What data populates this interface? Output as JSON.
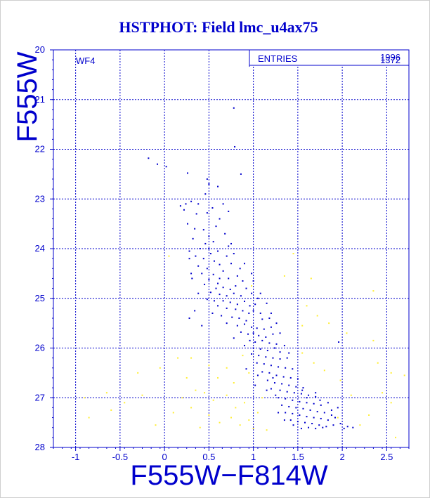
{
  "chart_data": {
    "type": "scatter",
    "title": "HSTPHOT: Field lmc_u4ax75",
    "xlabel": "F555W−F814W",
    "ylabel": "F555W",
    "xlim": [
      -1.25,
      2.75
    ],
    "ylim": [
      20,
      28
    ],
    "y_inverted": true,
    "xticks": [
      -1,
      -0.5,
      0,
      0.5,
      1,
      1.5,
      2,
      2.5
    ],
    "yticks": [
      20,
      21,
      22,
      23,
      24,
      25,
      26,
      27,
      28
    ],
    "grid": true,
    "panel_label": "WF4",
    "stats_box": {
      "label": "ENTRIES",
      "values": [
        "1996",
        "1372"
      ]
    },
    "colors": {
      "axis": "#0000cc",
      "primary_points": "#0000cc",
      "secondary_points": "#ffee33"
    },
    "series": [
      {
        "color": "#0000cc",
        "points": [
          [
            0.78,
            21.17
          ],
          [
            0.79,
            21.95
          ],
          [
            -0.18,
            22.18
          ],
          [
            -0.08,
            22.3
          ],
          [
            0.02,
            22.35
          ],
          [
            0.26,
            22.48
          ],
          [
            0.48,
            22.6
          ],
          [
            0.5,
            22.7
          ],
          [
            0.46,
            22.9
          ],
          [
            0.3,
            23.05
          ],
          [
            0.24,
            23.1
          ],
          [
            0.38,
            23.1
          ],
          [
            0.18,
            23.14
          ],
          [
            0.54,
            23.18
          ],
          [
            0.22,
            23.22
          ],
          [
            0.48,
            23.28
          ],
          [
            0.36,
            23.3
          ],
          [
            0.66,
            23.1
          ],
          [
            0.72,
            23.25
          ],
          [
            0.62,
            23.4
          ],
          [
            0.58,
            23.55
          ],
          [
            0.44,
            23.62
          ],
          [
            0.5,
            23.75
          ],
          [
            0.32,
            23.8
          ],
          [
            0.55,
            23.86
          ],
          [
            0.46,
            23.9
          ],
          [
            0.68,
            23.7
          ],
          [
            0.75,
            23.9
          ],
          [
            0.4,
            24.0
          ],
          [
            0.28,
            24.05
          ],
          [
            0.52,
            24.1
          ],
          [
            0.6,
            24.05
          ],
          [
            0.35,
            24.15
          ],
          [
            0.44,
            24.2
          ],
          [
            0.7,
            24.15
          ],
          [
            0.56,
            24.25
          ],
          [
            0.62,
            24.32
          ],
          [
            0.38,
            24.35
          ],
          [
            0.48,
            24.4
          ],
          [
            0.66,
            24.45
          ],
          [
            0.75,
            24.3
          ],
          [
            0.85,
            24.4
          ],
          [
            0.42,
            24.5
          ],
          [
            0.55,
            24.52
          ],
          [
            0.31,
            24.6
          ],
          [
            0.5,
            24.62
          ],
          [
            0.62,
            24.6
          ],
          [
            0.72,
            24.6
          ],
          [
            0.82,
            24.55
          ],
          [
            0.88,
            24.65
          ],
          [
            0.6,
            24.7
          ],
          [
            0.45,
            24.72
          ],
          [
            0.58,
            24.8
          ],
          [
            0.66,
            24.78
          ],
          [
            0.74,
            24.82
          ],
          [
            0.8,
            24.75
          ],
          [
            0.92,
            24.8
          ],
          [
            0.52,
            24.88
          ],
          [
            0.38,
            24.9
          ],
          [
            0.62,
            24.92
          ],
          [
            0.7,
            24.95
          ],
          [
            0.78,
            24.9
          ],
          [
            0.86,
            24.95
          ],
          [
            0.98,
            24.9
          ],
          [
            1.05,
            25.0
          ],
          [
            0.48,
            25.02
          ],
          [
            0.56,
            25.05
          ],
          [
            0.66,
            25.05
          ],
          [
            0.74,
            25.08
          ],
          [
            0.82,
            25.12
          ],
          [
            0.9,
            25.06
          ],
          [
            0.96,
            25.15
          ],
          [
            1.02,
            25.12
          ],
          [
            0.6,
            25.15
          ],
          [
            0.7,
            25.2
          ],
          [
            0.8,
            25.22
          ],
          [
            0.88,
            25.25
          ],
          [
            0.95,
            25.3
          ],
          [
            1.0,
            25.25
          ],
          [
            1.08,
            25.3
          ],
          [
            0.54,
            25.3
          ],
          [
            0.64,
            25.35
          ],
          [
            0.76,
            25.38
          ],
          [
            0.84,
            25.4
          ],
          [
            0.92,
            25.45
          ],
          [
            1.1,
            25.42
          ],
          [
            1.18,
            25.4
          ],
          [
            0.7,
            25.5
          ],
          [
            0.82,
            25.55
          ],
          [
            0.9,
            25.52
          ],
          [
            0.98,
            25.58
          ],
          [
            1.04,
            25.6
          ],
          [
            1.12,
            25.62
          ],
          [
            1.2,
            25.58
          ],
          [
            0.86,
            25.68
          ],
          [
            0.94,
            25.72
          ],
          [
            1.0,
            25.7
          ],
          [
            1.06,
            25.75
          ],
          [
            1.14,
            25.78
          ],
          [
            1.22,
            25.72
          ],
          [
            0.78,
            25.8
          ],
          [
            0.96,
            25.85
          ],
          [
            1.02,
            25.88
          ],
          [
            1.1,
            25.85
          ],
          [
            1.18,
            25.9
          ],
          [
            1.26,
            25.92
          ],
          [
            0.9,
            25.95
          ],
          [
            1.0,
            26.0
          ],
          [
            1.08,
            26.02
          ],
          [
            1.16,
            26.05
          ],
          [
            1.24,
            26.0
          ],
          [
            1.3,
            26.08
          ],
          [
            0.98,
            26.12
          ],
          [
            1.06,
            26.15
          ],
          [
            1.14,
            26.18
          ],
          [
            1.22,
            26.2
          ],
          [
            1.3,
            26.22
          ],
          [
            1.38,
            26.2
          ],
          [
            1.04,
            26.3
          ],
          [
            1.12,
            26.32
          ],
          [
            1.2,
            26.35
          ],
          [
            1.28,
            26.38
          ],
          [
            1.36,
            26.4
          ],
          [
            1.44,
            26.42
          ],
          [
            0.92,
            26.42
          ],
          [
            1.1,
            26.48
          ],
          [
            1.18,
            26.5
          ],
          [
            1.26,
            26.55
          ],
          [
            1.34,
            26.58
          ],
          [
            1.42,
            26.6
          ],
          [
            1.5,
            26.62
          ],
          [
            1.16,
            26.65
          ],
          [
            1.24,
            26.7
          ],
          [
            1.32,
            26.72
          ],
          [
            1.4,
            26.75
          ],
          [
            1.48,
            26.78
          ],
          [
            1.56,
            26.8
          ],
          [
            1.2,
            26.82
          ],
          [
            1.3,
            26.85
          ],
          [
            1.38,
            26.88
          ],
          [
            1.46,
            26.9
          ],
          [
            1.54,
            26.92
          ],
          [
            1.62,
            26.95
          ],
          [
            1.7,
            26.98
          ],
          [
            1.28,
            27.0
          ],
          [
            1.36,
            27.02
          ],
          [
            1.44,
            27.05
          ],
          [
            1.52,
            27.08
          ],
          [
            1.6,
            27.1
          ],
          [
            1.68,
            27.12
          ],
          [
            1.76,
            27.15
          ],
          [
            1.84,
            27.1
          ],
          [
            1.32,
            27.15
          ],
          [
            1.4,
            27.18
          ],
          [
            1.48,
            27.2
          ],
          [
            1.56,
            27.22
          ],
          [
            1.64,
            27.25
          ],
          [
            1.72,
            27.28
          ],
          [
            1.8,
            27.3
          ],
          [
            1.88,
            27.25
          ],
          [
            1.36,
            27.3
          ],
          [
            1.44,
            27.32
          ],
          [
            1.52,
            27.35
          ],
          [
            1.6,
            27.38
          ],
          [
            1.68,
            27.4
          ],
          [
            1.76,
            27.42
          ],
          [
            1.84,
            27.45
          ],
          [
            1.92,
            27.4
          ],
          [
            1.42,
            27.45
          ],
          [
            1.5,
            27.48
          ],
          [
            1.58,
            27.5
          ],
          [
            1.66,
            27.52
          ],
          [
            1.74,
            27.55
          ],
          [
            1.82,
            27.58
          ],
          [
            1.9,
            27.55
          ],
          [
            1.98,
            27.52
          ],
          [
            2.06,
            27.58
          ],
          [
            2.12,
            27.6
          ],
          [
            1.54,
            27.62
          ],
          [
            1.62,
            27.6
          ],
          [
            1.7,
            27.62
          ],
          [
            1.78,
            27.6
          ],
          [
            2.02,
            27.62
          ],
          [
            1.88,
            27.35
          ],
          [
            1.95,
            27.2
          ],
          [
            1.6,
            27.0
          ],
          [
            1.55,
            26.85
          ],
          [
            1.7,
            26.9
          ],
          [
            1.75,
            27.05
          ],
          [
            0.28,
            24.2
          ],
          [
            0.3,
            24.5
          ],
          [
            0.34,
            25.25
          ],
          [
            0.28,
            25.4
          ],
          [
            0.42,
            25.55
          ],
          [
            0.98,
            24.5
          ],
          [
            1.0,
            24.65
          ],
          [
            0.9,
            24.3
          ],
          [
            0.78,
            24.1
          ],
          [
            0.72,
            23.95
          ],
          [
            1.08,
            24.9
          ],
          [
            1.15,
            25.1
          ],
          [
            1.2,
            25.3
          ],
          [
            1.26,
            25.5
          ],
          [
            1.3,
            25.7
          ],
          [
            1.35,
            25.95
          ],
          [
            1.4,
            26.1
          ],
          [
            0.26,
            23.5
          ],
          [
            0.34,
            23.6
          ],
          [
            0.5,
            24.0
          ],
          [
            1.96,
            25.88
          ],
          [
            0.86,
            22.5
          ],
          [
            0.6,
            22.75
          ],
          [
            1.22,
            26.6
          ],
          [
            1.05,
            26.55
          ],
          [
            1.15,
            26.85
          ],
          [
            1.25,
            26.95
          ],
          [
            1.02,
            26.75
          ],
          [
            1.45,
            27.55
          ],
          [
            1.35,
            27.45
          ],
          [
            1.28,
            27.3
          ]
        ]
      },
      {
        "color": "#ffee33",
        "points": [
          [
            1.45,
            24.1
          ],
          [
            1.35,
            24.55
          ],
          [
            1.6,
            25.15
          ],
          [
            2.35,
            24.85
          ],
          [
            1.85,
            25.5
          ],
          [
            2.05,
            25.7
          ],
          [
            2.35,
            25.85
          ],
          [
            2.4,
            26.3
          ],
          [
            2.55,
            26.5
          ],
          [
            2.7,
            26.55
          ],
          [
            2.45,
            26.9
          ],
          [
            2.55,
            27.1
          ],
          [
            2.3,
            27.35
          ],
          [
            2.1,
            26.95
          ],
          [
            1.98,
            26.65
          ],
          [
            1.8,
            26.45
          ],
          [
            0.05,
            24.15
          ],
          [
            -0.05,
            26.4
          ],
          [
            -0.3,
            26.5
          ],
          [
            -0.45,
            27.1
          ],
          [
            -0.6,
            27.25
          ],
          [
            -0.85,
            27.4
          ],
          [
            -0.9,
            27.0
          ],
          [
            -0.1,
            27.55
          ],
          [
            0.1,
            27.3
          ],
          [
            0.25,
            26.6
          ],
          [
            0.35,
            26.85
          ],
          [
            0.45,
            26.9
          ],
          [
            0.55,
            27.05
          ],
          [
            0.6,
            26.6
          ],
          [
            0.7,
            26.95
          ],
          [
            0.8,
            27.2
          ],
          [
            0.9,
            27.1
          ],
          [
            0.95,
            27.45
          ],
          [
            1.05,
            27.3
          ],
          [
            1.1,
            27.0
          ],
          [
            0.62,
            27.5
          ],
          [
            0.5,
            27.35
          ],
          [
            0.4,
            27.6
          ],
          [
            0.3,
            27.2
          ],
          [
            0.2,
            27.0
          ],
          [
            0.15,
            26.2
          ],
          [
            0.3,
            26.2
          ],
          [
            0.5,
            26.35
          ],
          [
            0.7,
            26.4
          ],
          [
            0.78,
            26.7
          ],
          [
            1.15,
            27.65
          ],
          [
            1.0,
            27.62
          ],
          [
            0.85,
            27.55
          ],
          [
            0.75,
            27.4
          ],
          [
            -0.25,
            26.95
          ],
          [
            -0.65,
            26.9
          ],
          [
            1.65,
            24.6
          ],
          [
            1.55,
            25.55
          ],
          [
            1.72,
            25.35
          ],
          [
            0.98,
            24.75
          ],
          [
            1.95,
            27.4
          ],
          [
            2.2,
            27.55
          ],
          [
            2.6,
            27.8
          ],
          [
            1.55,
            26.1
          ],
          [
            1.68,
            26.3
          ],
          [
            0.88,
            26.15
          ],
          [
            0.95,
            26.5
          ]
        ]
      }
    ]
  }
}
